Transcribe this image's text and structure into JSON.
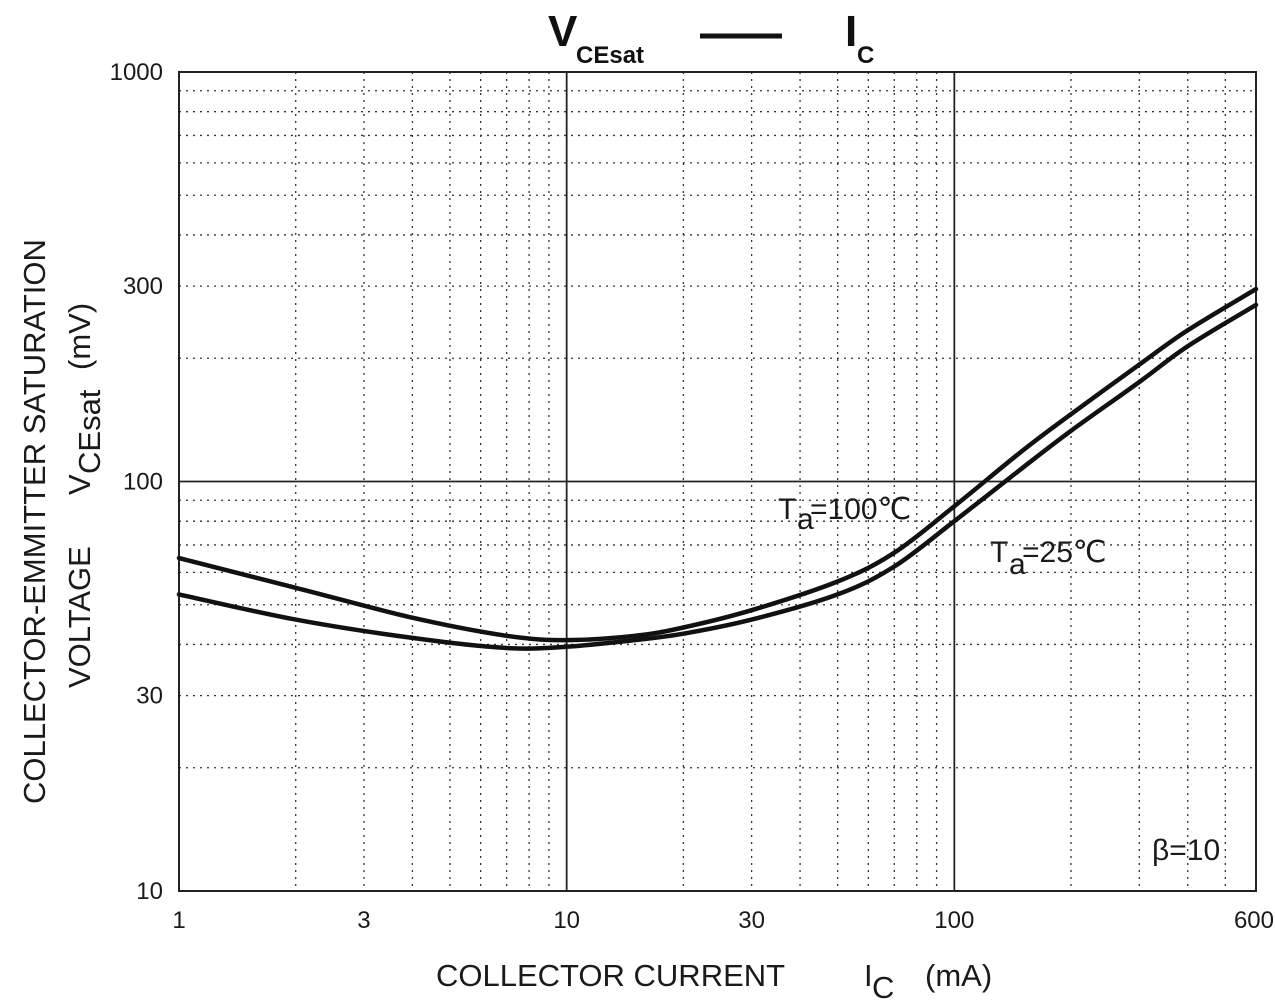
{
  "chart_data": {
    "type": "line",
    "title": {
      "left_main": "V",
      "left_sub": "CEsat",
      "right_main": "I",
      "right_sub": "C"
    },
    "xlabel": {
      "text": "COLLECTOR CURRENT",
      "symbol": "I",
      "symbol_sub": "C",
      "unit": "(mA)"
    },
    "ylabel": {
      "line1": "COLLECTOR-EMMITTER SATURATION",
      "line2_text": "VOLTAGE",
      "symbol": "V",
      "symbol_sub": "CEsat",
      "unit": "(mV)"
    },
    "x_scale": "log",
    "y_scale": "log",
    "xlim": [
      1,
      600
    ],
    "ylim": [
      10,
      1000
    ],
    "x_ticks": [
      {
        "value": 1,
        "label": "1"
      },
      {
        "value": 3,
        "label": "3"
      },
      {
        "value": 10,
        "label": "10"
      },
      {
        "value": 30,
        "label": "30"
      },
      {
        "value": 100,
        "label": "100"
      },
      {
        "value": 600,
        "label": "600"
      }
    ],
    "y_ticks": [
      {
        "value": 10,
        "label": "10"
      },
      {
        "value": 30,
        "label": "30"
      },
      {
        "value": 100,
        "label": "100"
      },
      {
        "value": 300,
        "label": "300"
      },
      {
        "value": 1000,
        "label": "1000"
      }
    ],
    "grid": true,
    "series": [
      {
        "name": "Ta=100℃",
        "x": [
          1,
          2,
          4,
          7,
          10,
          15,
          20,
          30,
          50,
          70,
          100,
          150,
          200,
          300,
          400,
          600
        ],
        "y": [
          53,
          46,
          41.5,
          39.2,
          39.5,
          41,
          42.5,
          46,
          53,
          62,
          80,
          108,
          133,
          175,
          214,
          270
        ]
      },
      {
        "name": "Ta=25℃",
        "x": [
          1,
          2,
          4,
          7,
          10,
          15,
          20,
          30,
          50,
          70,
          100,
          150,
          200,
          300,
          400,
          600
        ],
        "y": [
          65,
          55,
          46.5,
          42,
          41,
          42,
          44,
          48.5,
          57,
          67,
          87,
          119,
          146,
          193,
          234,
          295
        ]
      }
    ],
    "annotations": [
      {
        "main": "T",
        "sub": "a",
        "value": "=100℃"
      },
      {
        "main": "T",
        "sub": "a",
        "value": "=25℃"
      },
      {
        "text": "β=10"
      }
    ]
  }
}
